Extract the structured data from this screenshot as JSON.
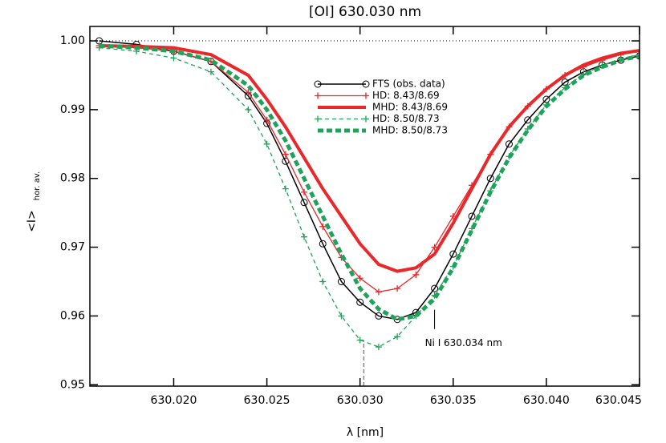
{
  "chart_data": {
    "type": "line",
    "title": "[OI] 630.030 nm",
    "xlabel": "λ [nm]",
    "ylabel": "<I>",
    "ylabel_sub": "hor. av.",
    "x": [
      630.016,
      630.018,
      630.02,
      630.022,
      630.024,
      630.025,
      630.026,
      630.027,
      630.028,
      630.029,
      630.03,
      630.031,
      630.032,
      630.033,
      630.034,
      630.035,
      630.036,
      630.037,
      630.038,
      630.039,
      630.04,
      630.041,
      630.042,
      630.043,
      630.044,
      630.045
    ],
    "series": [
      {
        "name": "FTS (obs. data)",
        "color": "#000000",
        "line": "solid",
        "marker": "circle",
        "width": 1.5,
        "values": [
          1.0,
          0.9995,
          0.9985,
          0.997,
          0.992,
          0.988,
          0.9825,
          0.9765,
          0.9705,
          0.965,
          0.962,
          0.96,
          0.9595,
          0.9605,
          0.964,
          0.969,
          0.9745,
          0.98,
          0.985,
          0.9885,
          0.9915,
          0.994,
          0.9955,
          0.9965,
          0.9972,
          0.9978
        ]
      },
      {
        "name": "HD: 8.43/8.69",
        "color": "#e8282b",
        "line": "solid",
        "marker": "plus",
        "width": 1.3,
        "values": [
          0.9993,
          0.999,
          0.9985,
          0.997,
          0.9925,
          0.9885,
          0.9835,
          0.978,
          0.973,
          0.9685,
          0.9655,
          0.9635,
          0.964,
          0.966,
          0.97,
          0.9745,
          0.979,
          0.9835,
          0.9875,
          0.9905,
          0.993,
          0.995,
          0.9962,
          0.9972,
          0.998,
          0.9985
        ]
      },
      {
        "name": "MHD: 8.43/8.69",
        "color": "#e8282b",
        "line": "solid",
        "marker": "none",
        "width": 4,
        "values": [
          0.9993,
          0.9992,
          0.999,
          0.998,
          0.995,
          0.9915,
          0.9875,
          0.983,
          0.9785,
          0.9745,
          0.9705,
          0.9675,
          0.9665,
          0.967,
          0.969,
          0.9735,
          0.9785,
          0.9835,
          0.9875,
          0.9905,
          0.993,
          0.995,
          0.9965,
          0.9975,
          0.9982,
          0.9986
        ]
      },
      {
        "name": "HD: 8.50/8.73",
        "color": "#1fa35a",
        "line": "dashed",
        "marker": "plus",
        "width": 1.3,
        "values": [
          0.999,
          0.9985,
          0.9975,
          0.9955,
          0.99,
          0.985,
          0.9785,
          0.9715,
          0.965,
          0.96,
          0.9565,
          0.9555,
          0.957,
          0.96,
          0.963,
          0.9672,
          0.9727,
          0.9782,
          0.9832,
          0.9872,
          0.9907,
          0.9932,
          0.9952,
          0.9964,
          0.9974,
          0.998
        ]
      },
      {
        "name": "MHD: 8.50/8.73",
        "color": "#1fa35a",
        "line": "dashed",
        "marker": "none",
        "width": 5,
        "values": [
          0.9993,
          0.999,
          0.9985,
          0.9972,
          0.9935,
          0.99,
          0.9855,
          0.98,
          0.9745,
          0.969,
          0.964,
          0.961,
          0.9595,
          0.96,
          0.9625,
          0.967,
          0.9725,
          0.978,
          0.983,
          0.987,
          0.9905,
          0.993,
          0.995,
          0.9962,
          0.9972,
          0.9978
        ]
      }
    ],
    "xlim": [
      630.0155,
      630.045
    ],
    "ylim": [
      0.9498,
      1.0021
    ],
    "xticks": [
      {
        "value": 630.02,
        "label": "630.020"
      },
      630.025,
      {
        "value": 630.03,
        "label": "630.030"
      },
      630.035,
      {
        "value": 630.04,
        "label": "630.040"
      },
      630.045
    ],
    "yticks": [
      {
        "value": 0.95,
        "label": "0.95"
      },
      {
        "value": 0.96,
        "label": "0.96"
      },
      {
        "value": 0.97,
        "label": "0.97"
      },
      {
        "value": 0.98,
        "label": "0.98"
      },
      {
        "value": 0.99,
        "label": "0.99"
      },
      {
        "value": 1.0,
        "label": "1.00"
      }
    ],
    "reference_line": 1.0,
    "marker_line": {
      "x": 630.0302,
      "y": 0.9565
    },
    "annotation": {
      "text": "Ni I 630.034 nm",
      "x": 630.034,
      "y": 0.9595
    }
  }
}
